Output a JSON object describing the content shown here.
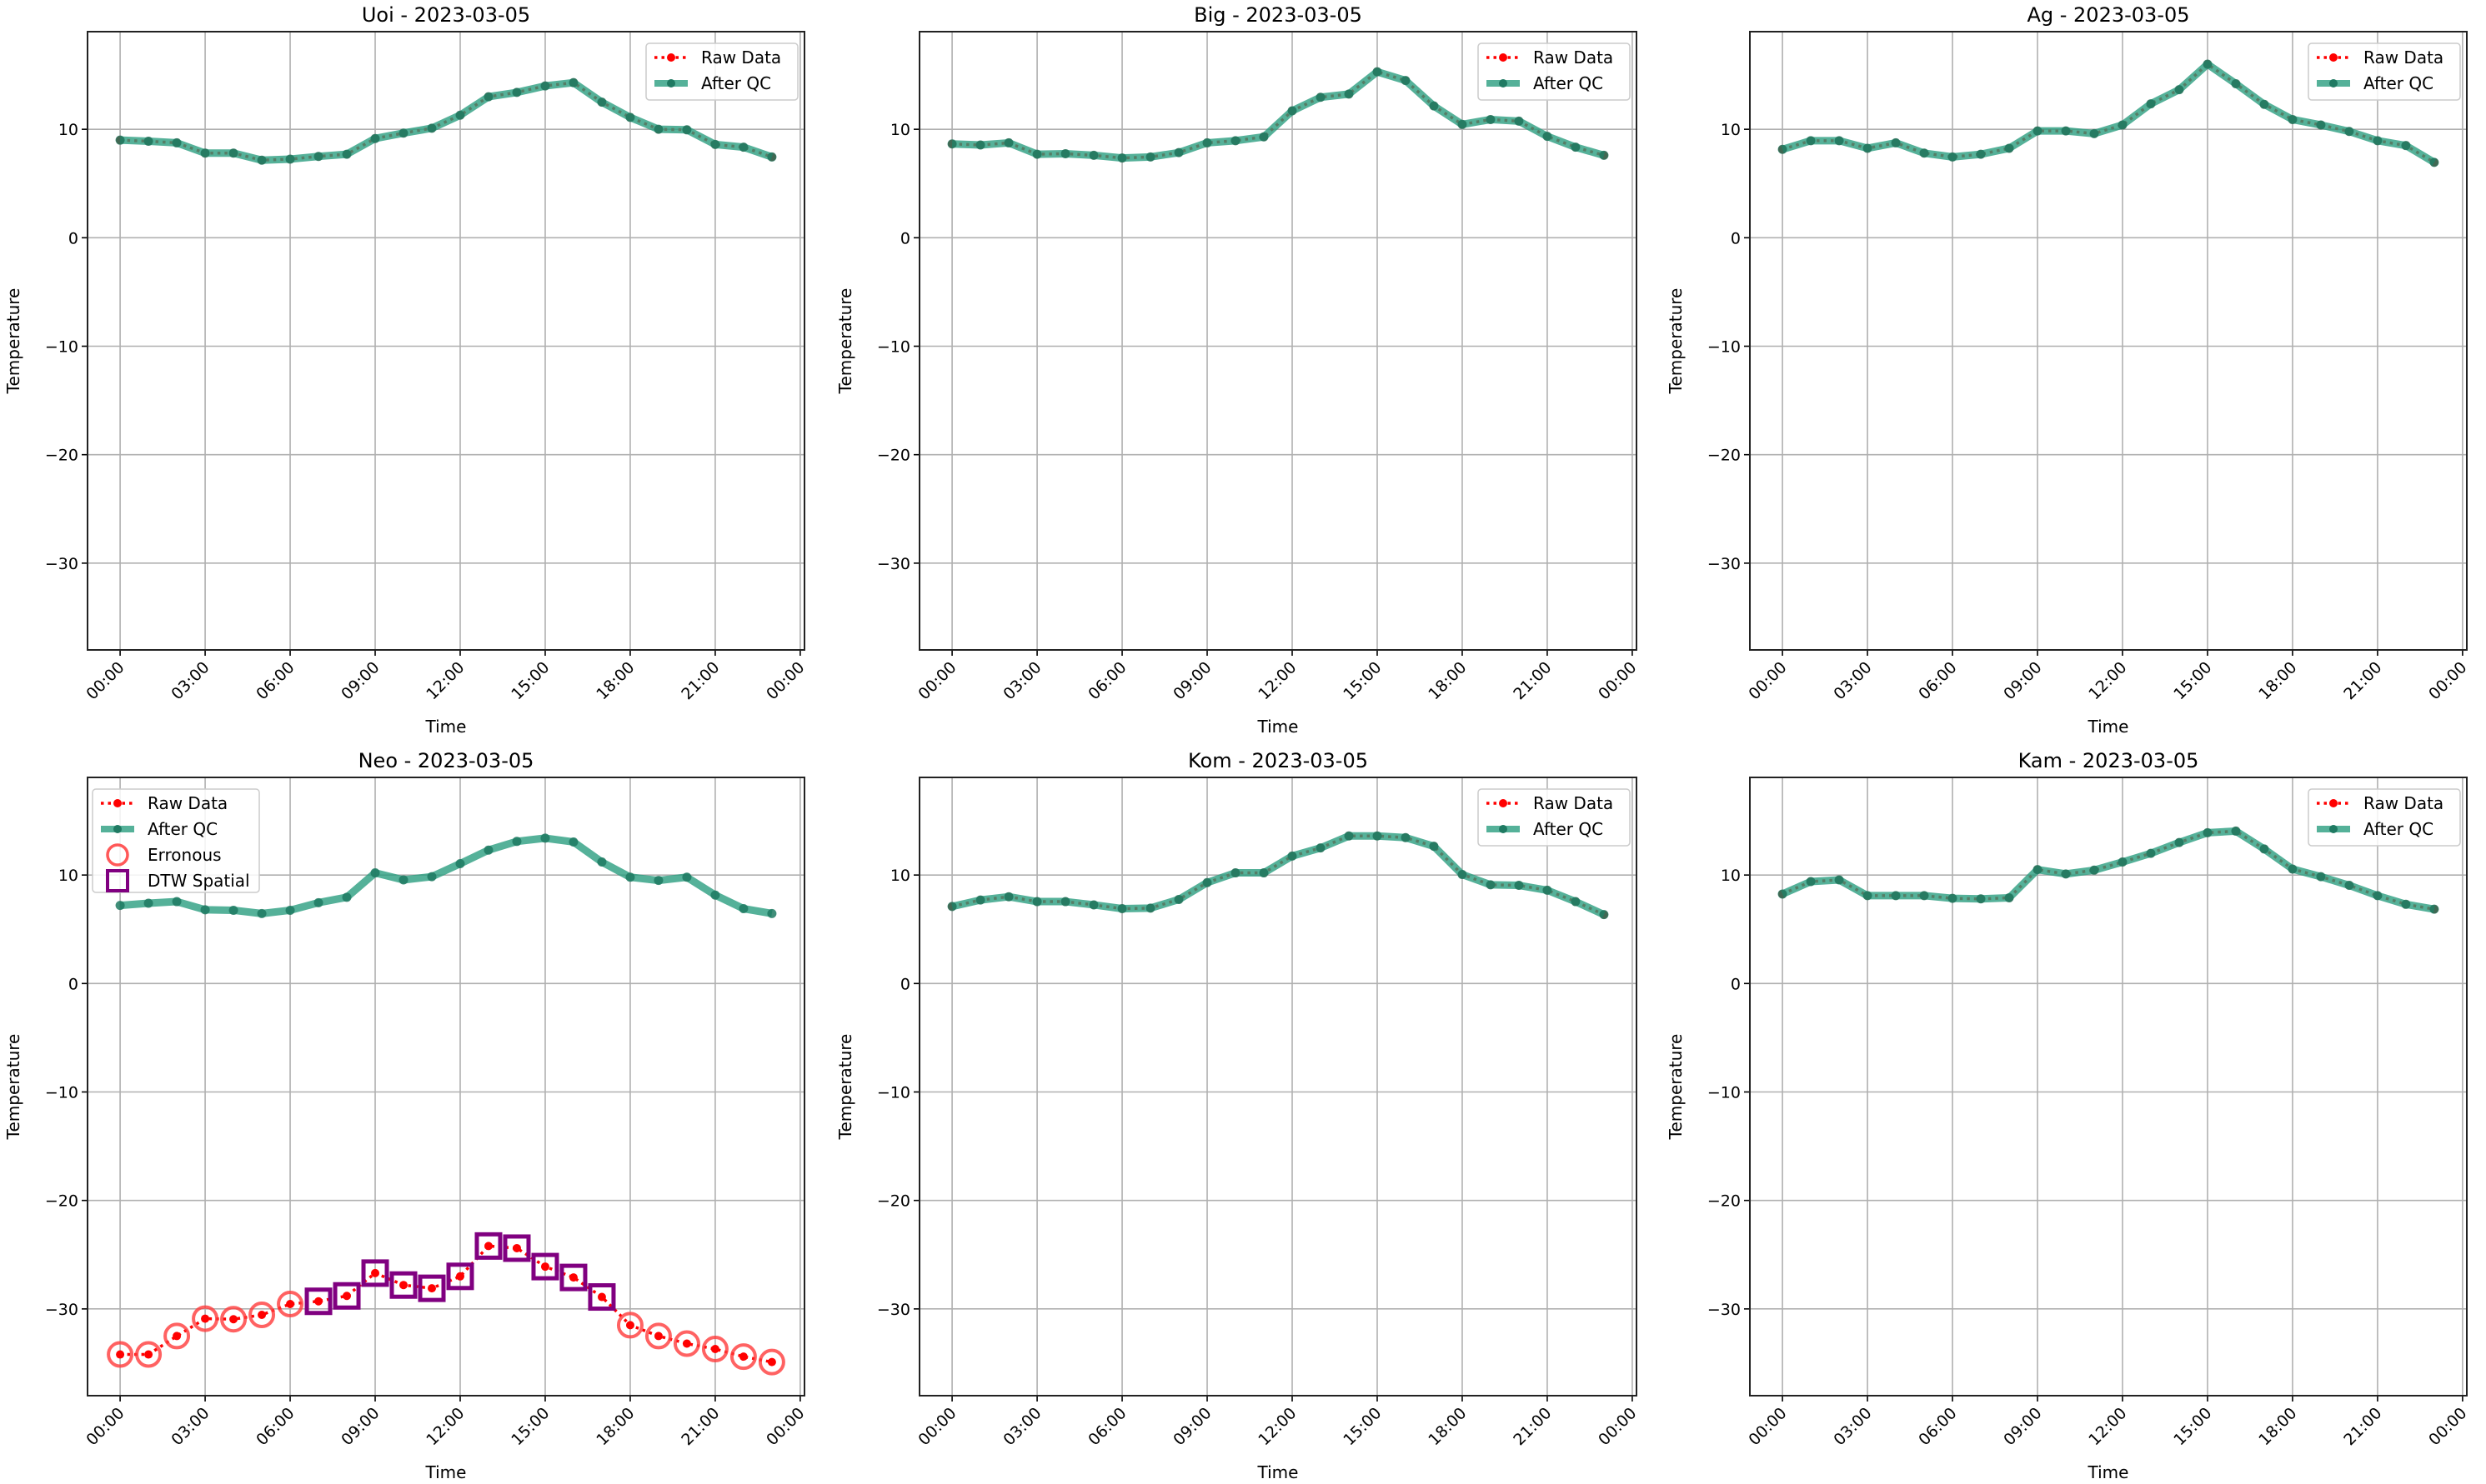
{
  "chart_data": [
    {
      "type": "line",
      "title": "Uoi - 2023-03-05",
      "xlabel": "Time",
      "ylabel": "Temperature",
      "ylim": [
        -38,
        19
      ],
      "xlim_hours": [
        -1.15,
        24.15
      ],
      "yticks": [
        -30,
        -20,
        -10,
        0,
        10
      ],
      "xtick_labels": [
        "00:00",
        "03:00",
        "06:00",
        "09:00",
        "12:00",
        "15:00",
        "18:00",
        "21:00",
        "00:00"
      ],
      "legend_position": "upper-right",
      "legend": [
        "Raw Data",
        "After QC"
      ],
      "hours": [
        0,
        1,
        2,
        3,
        4,
        5,
        6,
        7,
        8,
        9,
        10,
        11,
        12,
        13,
        14,
        15,
        16,
        17,
        18,
        19,
        20,
        21,
        22,
        23
      ],
      "series": [
        {
          "name": "Raw Data",
          "values": [
            9.0,
            8.9,
            8.75,
            7.8,
            7.8,
            7.15,
            7.25,
            7.5,
            7.7,
            9.15,
            9.65,
            10.1,
            11.3,
            13.0,
            13.4,
            14.0,
            14.3,
            12.5,
            11.1,
            10.0,
            9.95,
            8.6,
            8.35,
            7.45
          ]
        },
        {
          "name": "After QC",
          "values": [
            9.0,
            8.9,
            8.75,
            7.8,
            7.8,
            7.15,
            7.25,
            7.5,
            7.7,
            9.15,
            9.65,
            10.1,
            11.3,
            13.0,
            13.4,
            14.0,
            14.3,
            12.5,
            11.1,
            10.0,
            9.95,
            8.6,
            8.35,
            7.45
          ]
        }
      ],
      "erroneous_hours": [],
      "dtw_spatial_hours": []
    },
    {
      "type": "line",
      "title": "Big - 2023-03-05",
      "xlabel": "Time",
      "ylabel": "Temperature",
      "ylim": [
        -38,
        19
      ],
      "xlim_hours": [
        -1.15,
        24.15
      ],
      "yticks": [
        -30,
        -20,
        -10,
        0,
        10
      ],
      "xtick_labels": [
        "00:00",
        "03:00",
        "06:00",
        "09:00",
        "12:00",
        "15:00",
        "18:00",
        "21:00",
        "00:00"
      ],
      "legend_position": "upper-right",
      "legend": [
        "Raw Data",
        "After QC"
      ],
      "hours": [
        0,
        1,
        2,
        3,
        4,
        5,
        6,
        7,
        8,
        9,
        10,
        11,
        12,
        13,
        14,
        15,
        16,
        17,
        18,
        19,
        20,
        21,
        22,
        23
      ],
      "series": [
        {
          "name": "Raw Data",
          "values": [
            8.65,
            8.55,
            8.75,
            7.7,
            7.75,
            7.6,
            7.35,
            7.45,
            7.85,
            8.75,
            8.95,
            9.3,
            11.7,
            12.95,
            13.25,
            15.3,
            14.5,
            12.15,
            10.45,
            10.9,
            10.75,
            9.35,
            8.35,
            7.6
          ]
        },
        {
          "name": "After QC",
          "values": [
            8.65,
            8.55,
            8.75,
            7.7,
            7.75,
            7.6,
            7.35,
            7.45,
            7.85,
            8.75,
            8.95,
            9.3,
            11.7,
            12.95,
            13.25,
            15.3,
            14.5,
            12.15,
            10.45,
            10.9,
            10.75,
            9.35,
            8.35,
            7.6
          ]
        }
      ],
      "erroneous_hours": [],
      "dtw_spatial_hours": []
    },
    {
      "type": "line",
      "title": "Ag - 2023-03-05",
      "xlabel": "Time",
      "ylabel": "Temperature",
      "ylim": [
        -38,
        19
      ],
      "xlim_hours": [
        -1.15,
        24.15
      ],
      "yticks": [
        -30,
        -20,
        -10,
        0,
        10
      ],
      "xtick_labels": [
        "00:00",
        "03:00",
        "06:00",
        "09:00",
        "12:00",
        "15:00",
        "18:00",
        "21:00",
        "00:00"
      ],
      "legend_position": "upper-right",
      "legend": [
        "Raw Data",
        "After QC"
      ],
      "hours": [
        0,
        1,
        2,
        3,
        4,
        5,
        6,
        7,
        8,
        9,
        10,
        11,
        12,
        13,
        14,
        15,
        16,
        17,
        18,
        19,
        20,
        21,
        22,
        23
      ],
      "series": [
        {
          "name": "Raw Data",
          "values": [
            8.15,
            8.95,
            8.95,
            8.25,
            8.75,
            7.8,
            7.45,
            7.7,
            8.25,
            9.85,
            9.85,
            9.6,
            10.4,
            12.35,
            13.65,
            16.0,
            14.2,
            12.3,
            10.9,
            10.4,
            9.8,
            8.95,
            8.5,
            6.95
          ]
        },
        {
          "name": "After QC",
          "values": [
            8.15,
            8.95,
            8.95,
            8.25,
            8.75,
            7.8,
            7.45,
            7.7,
            8.25,
            9.85,
            9.85,
            9.6,
            10.4,
            12.35,
            13.65,
            16.0,
            14.2,
            12.3,
            10.9,
            10.4,
            9.8,
            8.95,
            8.5,
            6.95
          ]
        }
      ],
      "erroneous_hours": [],
      "dtw_spatial_hours": []
    },
    {
      "type": "line",
      "title": "Neo - 2023-03-05",
      "xlabel": "Time",
      "ylabel": "Temperature",
      "ylim": [
        -38,
        19
      ],
      "xlim_hours": [
        -1.15,
        24.15
      ],
      "yticks": [
        -30,
        -20,
        -10,
        0,
        10
      ],
      "xtick_labels": [
        "00:00",
        "03:00",
        "06:00",
        "09:00",
        "12:00",
        "15:00",
        "18:00",
        "21:00",
        "00:00"
      ],
      "legend_position": "upper-left",
      "legend": [
        "Raw Data",
        "After QC",
        "Erronous",
        "DTW Spatial"
      ],
      "hours": [
        0,
        1,
        2,
        3,
        4,
        5,
        6,
        7,
        8,
        9,
        10,
        11,
        12,
        13,
        14,
        15,
        16,
        17,
        18,
        19,
        20,
        21,
        22,
        23
      ],
      "series": [
        {
          "name": "Raw Data",
          "values": [
            -34.2,
            -34.2,
            -32.5,
            -30.9,
            -30.95,
            -30.55,
            -29.55,
            -29.3,
            -28.8,
            -26.7,
            -27.8,
            -28.1,
            -27.0,
            -24.2,
            -24.4,
            -26.1,
            -27.1,
            -28.9,
            -31.5,
            -32.5,
            -33.2,
            -33.7,
            -34.4,
            -34.9
          ]
        },
        {
          "name": "After QC",
          "values": [
            7.2,
            7.4,
            7.55,
            6.8,
            6.75,
            6.45,
            6.75,
            7.45,
            7.95,
            10.2,
            9.55,
            9.85,
            11.05,
            12.3,
            13.1,
            13.4,
            13.05,
            11.2,
            9.8,
            9.5,
            9.8,
            8.15,
            6.9,
            6.45
          ]
        }
      ],
      "erroneous_hours": [
        0,
        1,
        2,
        3,
        4,
        5,
        6,
        18,
        19,
        20,
        21,
        22,
        23
      ],
      "dtw_spatial_hours": [
        7,
        8,
        9,
        10,
        11,
        12,
        13,
        14,
        15,
        16,
        17
      ]
    },
    {
      "type": "line",
      "title": "Kom - 2023-03-05",
      "xlabel": "Time",
      "ylabel": "Temperature",
      "ylim": [
        -38,
        19
      ],
      "xlim_hours": [
        -1.15,
        24.15
      ],
      "yticks": [
        -30,
        -20,
        -10,
        0,
        10
      ],
      "xtick_labels": [
        "00:00",
        "03:00",
        "06:00",
        "09:00",
        "12:00",
        "15:00",
        "18:00",
        "21:00",
        "00:00"
      ],
      "legend_position": "upper-right",
      "legend": [
        "Raw Data",
        "After QC"
      ],
      "hours": [
        0,
        1,
        2,
        3,
        4,
        5,
        6,
        7,
        8,
        9,
        10,
        11,
        12,
        13,
        14,
        15,
        16,
        17,
        18,
        19,
        20,
        21,
        22,
        23
      ],
      "series": [
        {
          "name": "Raw Data",
          "values": [
            7.1,
            7.7,
            8.0,
            7.55,
            7.55,
            7.25,
            6.9,
            6.95,
            7.75,
            9.3,
            10.2,
            10.2,
            11.75,
            12.5,
            13.6,
            13.6,
            13.45,
            12.65,
            10.05,
            9.1,
            9.05,
            8.6,
            7.55,
            6.35
          ]
        },
        {
          "name": "After QC",
          "values": [
            7.1,
            7.7,
            8.0,
            7.55,
            7.55,
            7.25,
            6.9,
            6.95,
            7.75,
            9.3,
            10.2,
            10.2,
            11.75,
            12.5,
            13.6,
            13.6,
            13.45,
            12.65,
            10.05,
            9.1,
            9.05,
            8.6,
            7.55,
            6.35
          ]
        }
      ],
      "erroneous_hours": [],
      "dtw_spatial_hours": []
    },
    {
      "type": "line",
      "title": "Kam - 2023-03-05",
      "xlabel": "Time",
      "ylabel": "Temperature",
      "ylim": [
        -38,
        19
      ],
      "xlim_hours": [
        -1.15,
        24.15
      ],
      "yticks": [
        -30,
        -20,
        -10,
        0,
        10
      ],
      "xtick_labels": [
        "00:00",
        "03:00",
        "06:00",
        "09:00",
        "12:00",
        "15:00",
        "18:00",
        "21:00",
        "00:00"
      ],
      "legend_position": "upper-right",
      "legend": [
        "Raw Data",
        "After QC"
      ],
      "hours": [
        0,
        1,
        2,
        3,
        4,
        5,
        6,
        7,
        8,
        9,
        10,
        11,
        12,
        13,
        14,
        15,
        16,
        17,
        18,
        19,
        20,
        21,
        22,
        23
      ],
      "series": [
        {
          "name": "Raw Data",
          "values": [
            8.25,
            9.4,
            9.55,
            8.1,
            8.1,
            8.1,
            7.85,
            7.8,
            7.9,
            10.5,
            10.1,
            10.45,
            11.2,
            12.0,
            13.0,
            13.9,
            14.05,
            12.4,
            10.55,
            9.85,
            9.05,
            8.1,
            7.3,
            6.85
          ]
        },
        {
          "name": "After QC",
          "values": [
            8.25,
            9.4,
            9.55,
            8.1,
            8.1,
            8.1,
            7.85,
            7.8,
            7.9,
            10.5,
            10.1,
            10.45,
            11.2,
            12.0,
            13.0,
            13.9,
            14.05,
            12.4,
            10.55,
            9.85,
            9.05,
            8.1,
            7.3,
            6.85
          ]
        }
      ],
      "erroneous_hours": [],
      "dtw_spatial_hours": []
    }
  ],
  "colors": {
    "raw": "#ff0000",
    "after_qc": "#2a9d7f",
    "after_qc_marker": "#1f7a62",
    "erroneous": "#ff3b3b",
    "dtw_spatial": "#800080",
    "grid": "#b0b0b0"
  }
}
